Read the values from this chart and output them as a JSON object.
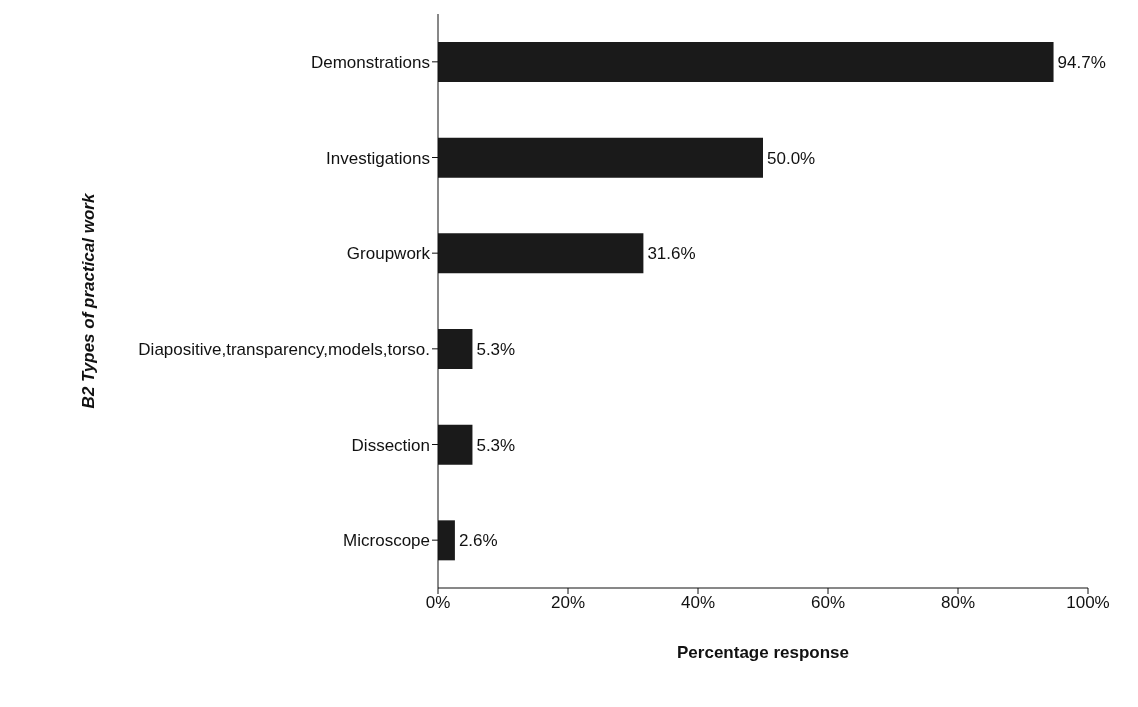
{
  "chart_data": {
    "type": "bar",
    "orientation": "horizontal",
    "xlabel": "Percentage response",
    "ylabel": "B2 Types of practical work",
    "categories": [
      "Demonstrations",
      "Investigations",
      "Groupwork",
      "Diapositive,transparency,models,torso.",
      "Dissection",
      "Microscope"
    ],
    "values": [
      94.7,
      50.0,
      31.6,
      5.3,
      5.3,
      2.6
    ],
    "value_labels": [
      "94.7%",
      "50.0%",
      "31.6%",
      "5.3%",
      "5.3%",
      "2.6%"
    ],
    "color": "#1a1a1a",
    "xlim": [
      0,
      100
    ],
    "xticks": [
      {
        "value": 0,
        "label": "0%"
      },
      {
        "value": 20,
        "label": "20%"
      },
      {
        "value": 40,
        "label": "40%"
      },
      {
        "value": 60,
        "label": "60%"
      },
      {
        "value": 80,
        "label": "80%"
      },
      {
        "value": 100,
        "label": "100%"
      }
    ],
    "grid": false,
    "legend": false
  }
}
